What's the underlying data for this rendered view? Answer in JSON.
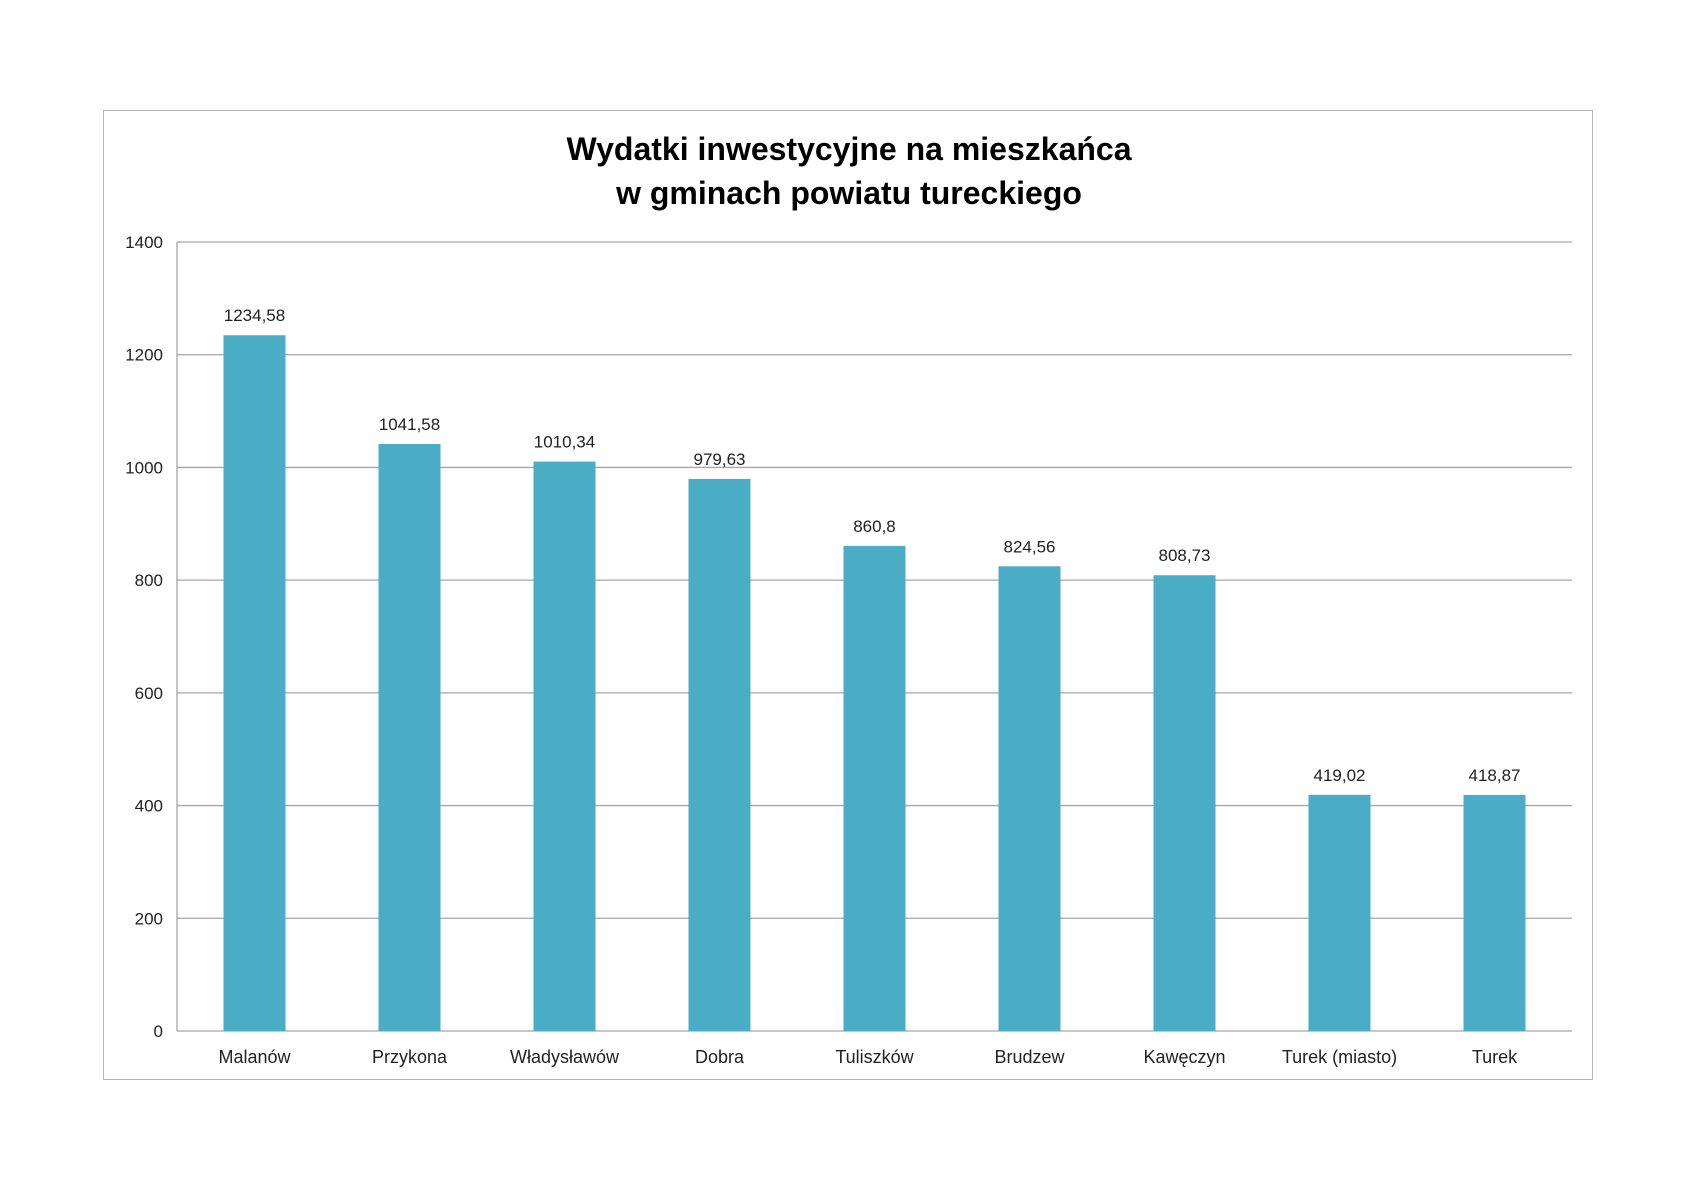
{
  "chart_data": {
    "type": "bar",
    "title": [
      "Wydatki inwestycyjne na mieszkańca",
      "w gminach powiatu tureckiego"
    ],
    "categories": [
      "Malanów",
      "Przykona",
      "Władysławów",
      "Dobra",
      "Tuliszków",
      "Brudzew",
      "Kawęczyn",
      "Turek (miasto)",
      "Turek"
    ],
    "values": [
      1234.58,
      1041.58,
      1010.34,
      979.63,
      860.8,
      824.56,
      808.73,
      419.02,
      418.87
    ],
    "value_labels": [
      "1234,58",
      "1041,58",
      "1010,34",
      "979,63",
      "860,8",
      "824,56",
      "808,73",
      "419,02",
      "418,87"
    ],
    "ylim": [
      0,
      1400
    ],
    "yticks": [
      0,
      200,
      400,
      600,
      800,
      1000,
      1200,
      1400
    ],
    "ytick_labels": [
      "0",
      "200",
      "400",
      "600",
      "800",
      "1000",
      "1200",
      "1400"
    ],
    "grid": true,
    "legend": "none",
    "bar_color": "#4bacc6",
    "grid_color": "#a6a6a6"
  }
}
